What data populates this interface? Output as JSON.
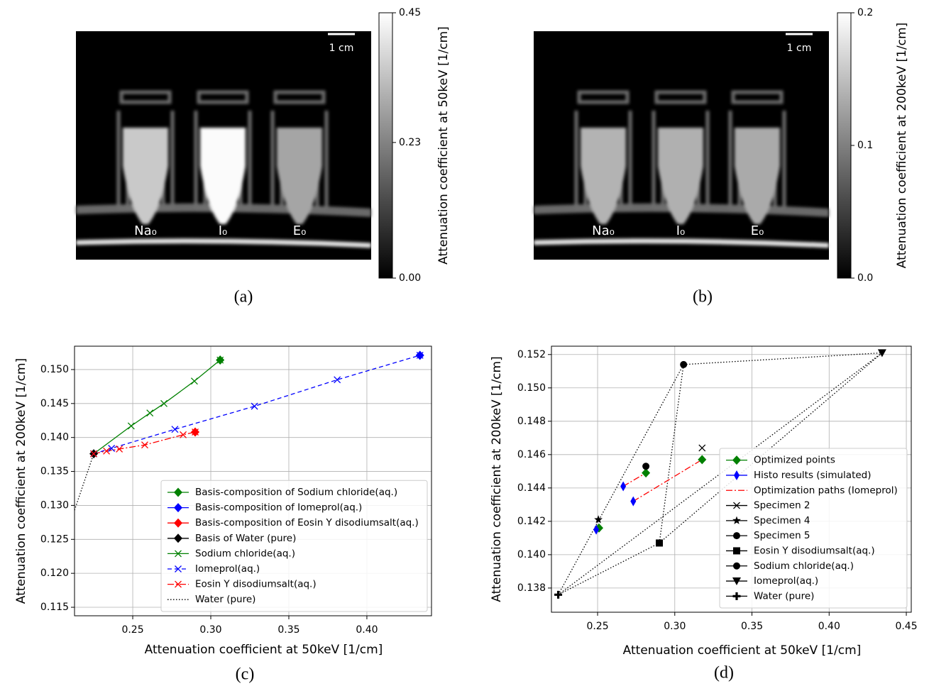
{
  "chart_data": [
    {
      "type": "image",
      "caption": "(a)",
      "scale_bar": "1 cm",
      "labels": [
        "Na₀",
        "I₀",
        "E₀"
      ],
      "ylabel": "Attenuation coefficient at 50keV [1/cm]",
      "ylim": [
        0,
        0.45
      ],
      "yticks": [
        {
          "value": 0,
          "label": "0.00"
        },
        0.23,
        0.45
      ]
    },
    {
      "type": "image",
      "caption": "(b)",
      "scale_bar": "1 cm",
      "labels": [
        "Na₀",
        "I₀",
        "E₀"
      ],
      "ylabel": "Attenuation coefficient at 200keV [1/cm]",
      "ylim": [
        0,
        0.2
      ],
      "yticks": [
        {
          "value": 0,
          "label": "0.0"
        },
        0.1,
        0.2
      ]
    },
    {
      "type": "line",
      "caption": "(c)",
      "xlabel": "Attenuation coefficient at 50keV [1/cm]",
      "ylabel": "Attenuation coefficient at 200keV [1/cm]",
      "xlim": [
        0.2127,
        0.4414
      ],
      "ylim": [
        0.11375,
        0.15344
      ],
      "xticks": [
        0.25,
        {
          "value": 0.3,
          "label": "0.30"
        },
        0.35,
        {
          "value": 0.4,
          "label": "0.40"
        }
      ],
      "yticks": [
        0.115,
        {
          "value": 0.12,
          "label": "0.120"
        },
        0.125,
        {
          "value": 0.13,
          "label": "0.130"
        },
        0.135,
        {
          "value": 0.14,
          "label": "0.140"
        },
        0.145,
        {
          "value": 0.15,
          "label": "0.150"
        }
      ],
      "grid": true,
      "legend": "lower right",
      "series": [
        {
          "name": "Basis-composition of Sodium chloride(aq.)",
          "color": "#008000",
          "marker": "D",
          "x": [
            0.306
          ],
          "values": [
            0.1514
          ]
        },
        {
          "name": "Basis-composition of Iomeprol(aq.)",
          "color": "#0000ff",
          "marker": "D",
          "x": [
            0.434
          ],
          "values": [
            0.1521
          ]
        },
        {
          "name": "Basis-composition of Eosin Y disodiumsalt(aq.)",
          "color": "#ff0000",
          "marker": "D",
          "x": [
            0.29
          ],
          "values": [
            0.1408
          ]
        },
        {
          "name": "Basis of Water (pure)",
          "color": "#000000",
          "marker": "D",
          "x": [
            0.225
          ],
          "values": [
            0.1376
          ]
        },
        {
          "name": "Sodium chloride(aq.)",
          "color": "#008000",
          "linestyle": "solid",
          "marker": "x",
          "x": [
            0.225,
            0.249,
            0.261,
            0.27,
            0.2895,
            0.306
          ],
          "values": [
            0.1376,
            0.1417,
            0.1436,
            0.145,
            0.1483,
            0.1514
          ]
        },
        {
          "name": "Iomeprol(aq.)",
          "color": "#0000ff",
          "linestyle": "dashed",
          "marker": "x",
          "x": [
            0.225,
            0.2364,
            0.277,
            0.328,
            0.381,
            0.434
          ],
          "values": [
            0.1376,
            0.1384,
            0.1412,
            0.1446,
            0.1485,
            0.1521
          ]
        },
        {
          "name": "Eosin Y disodiumsalt(aq.)",
          "color": "#ff0000",
          "linestyle": "dashdot",
          "marker": "x",
          "x": [
            0.225,
            0.2332,
            0.2414,
            0.2577,
            0.2823,
            0.29
          ],
          "values": [
            0.1376,
            0.138,
            0.1383,
            0.1389,
            0.1404,
            0.1408
          ]
        },
        {
          "name": "Water (pure)",
          "color": "#000000",
          "linestyle": "dotted",
          "x": [
            0.2127,
            0.225
          ],
          "values": [
            0.1293,
            0.1376
          ]
        }
      ]
    },
    {
      "type": "line",
      "caption": "(d)",
      "xlabel": "Attenuation coefficient at 50keV [1/cm]",
      "ylabel": "Attenuation coefficient at 200keV [1/cm]",
      "xlim": [
        0.2201,
        0.4532
      ],
      "ylim": [
        0.13655,
        0.1525
      ],
      "xticks": [
        0.25,
        {
          "value": 0.3,
          "label": "0.30"
        },
        0.35,
        {
          "value": 0.4,
          "label": "0.40"
        },
        0.45
      ],
      "yticks": [
        0.138,
        {
          "value": 0.14,
          "label": "0.140"
        },
        0.142,
        0.144,
        0.146,
        0.148,
        {
          "value": 0.15,
          "label": "0.150"
        },
        0.152
      ],
      "grid": true,
      "legend": "lower right",
      "series": [
        {
          "name": "Optimized points",
          "color": "#008000",
          "marker": "D",
          "x": [
            0.2509,
            0.2813,
            0.3177
          ],
          "values": [
            0.1416,
            0.1449,
            0.1457
          ]
        },
        {
          "name": "Histo results (simulated)",
          "color": "#0000ff",
          "marker": "d",
          "x": [
            0.2491,
            0.2666,
            0.2731
          ],
          "values": [
            0.1415,
            0.1441,
            0.1432
          ]
        },
        {
          "name": "Optimization paths (Iomeprol)",
          "color": "#ff0000",
          "linestyle": "dashdot",
          "x": [
            0.2731,
            0.3177,
            null,
            0.2666,
            0.2813
          ],
          "values": [
            0.1432,
            0.1457,
            null,
            0.1441,
            0.1449
          ]
        },
        {
          "name": "Specimen 2",
          "color": "#000000",
          "marker": "x",
          "x": [
            0.3177
          ],
          "values": [
            0.1464
          ]
        },
        {
          "name": "Specimen 4",
          "color": "#000000",
          "marker": "*",
          "x": [
            0.2505
          ],
          "values": [
            0.1421
          ]
        },
        {
          "name": "Specimen 5",
          "color": "#000000",
          "marker": "8",
          "x": [
            0.2813
          ],
          "values": [
            0.1453
          ]
        },
        {
          "name": "Eosin Y disodiumsalt(aq.)",
          "color": "#000000",
          "marker": "s",
          "x": [
            0.29
          ],
          "values": [
            0.1407
          ]
        },
        {
          "name": "Sodium chloride(aq.)",
          "color": "#000000",
          "marker": "o",
          "x": [
            0.3057
          ],
          "values": [
            0.1514
          ]
        },
        {
          "name": "Iomeprol(aq.)",
          "color": "#000000",
          "marker": "v",
          "x": [
            0.4343
          ],
          "values": [
            0.1521
          ]
        },
        {
          "name": "Water (pure)",
          "color": "#000000",
          "marker": "P",
          "x": [
            0.2245
          ],
          "values": [
            0.1376
          ]
        }
      ]
    }
  ]
}
